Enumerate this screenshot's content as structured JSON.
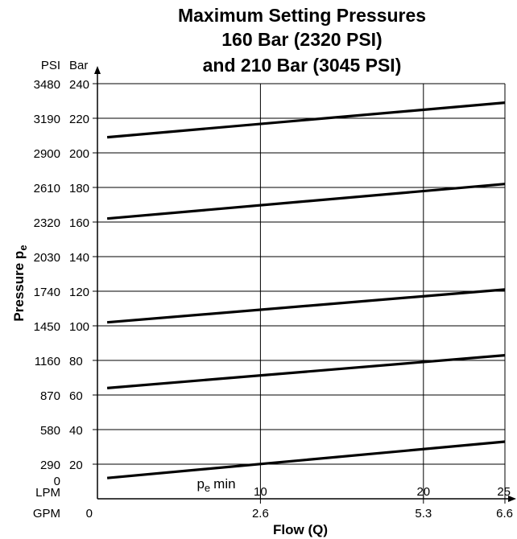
{
  "chart_data": {
    "type": "line",
    "title": [
      "Maximum Setting Pressures",
      "160 Bar (2320 PSI)",
      "and 210 Bar (3045 PSI)"
    ],
    "ylabel": "Pressure",
    "ylabel_symbol": "p",
    "ylabel_subscript": "e",
    "xlabel": "Flow (Q)",
    "y_units": {
      "psi": "PSI",
      "bar": "Bar"
    },
    "x_units": {
      "lpm": "LPM",
      "gpm": "GPM"
    },
    "ylim_bar": [
      0,
      240
    ],
    "xlim_lpm": [
      0,
      25
    ],
    "y_ticks_bar": [
      "240",
      "220",
      "200",
      "180",
      "160",
      "140",
      "120",
      "100",
      "80",
      "60",
      "40",
      "20"
    ],
    "y_ticks_psi": [
      "3480",
      "3190",
      "2900",
      "2610",
      "2320",
      "2030",
      "1740",
      "1450",
      "1160",
      "870",
      "580",
      "290",
      "0"
    ],
    "x_ticks_lpm": [
      "10",
      "20",
      "25"
    ],
    "x_ticks_gpm": [
      "0",
      "2.6",
      "5.3",
      "6.6"
    ],
    "grid": true,
    "series": [
      {
        "x": [
          0.6,
          25
        ],
        "y": [
          209,
          229
        ]
      },
      {
        "x": [
          0.6,
          25
        ],
        "y": [
          162,
          182
        ]
      },
      {
        "x": [
          0.6,
          25
        ],
        "y": [
          102,
          121
        ]
      },
      {
        "x": [
          0.6,
          25
        ],
        "y": [
          64,
          83
        ]
      },
      {
        "x": [
          0.6,
          25
        ],
        "y": [
          12,
          33
        ]
      }
    ],
    "annotations": [
      {
        "text": "min",
        "symbol": "p",
        "subscript": "e",
        "x": 6.1,
        "y": 6
      }
    ]
  }
}
